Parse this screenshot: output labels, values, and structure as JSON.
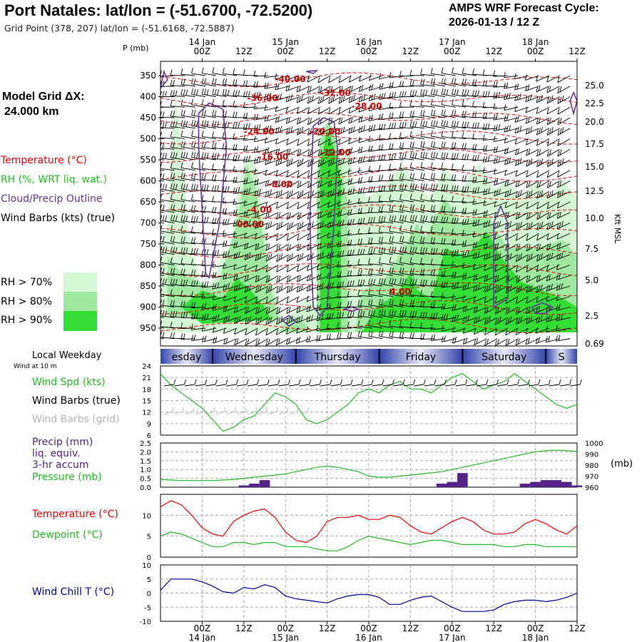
{
  "header": {
    "title": "Port Natales:  lat/lon = (-51.6700, -72.5200)",
    "grid_point": "Grid Point (378, 207) lat/lon = (-51.6168, -72.5887)",
    "forecast_label": "AMPS WRF Forecast Cycle:",
    "forecast_cycle": "2026-01-13 / 12  Z",
    "p_axis_label": "P (mb)",
    "model_grid_label": "Model Grid ΔX:",
    "model_grid_value": "24.000 km",
    "kft_label": "Kft MSL"
  },
  "legend": {
    "temperature": "Temperature (°C)",
    "rh": "RH (%, WRT liq. wat.)",
    "cloud": "Cloud/Precip Outline",
    "wind": "Wind Barbs (kts) (true)",
    "rh70": "RH > 70%",
    "rh80": "RH > 80%",
    "rh90": "RH > 90%"
  },
  "colors": {
    "temperature": "#ee0000",
    "rh": "#22bb22",
    "cloud": "#663399",
    "rh70": "#d2f7d2",
    "rh80": "#9fe89f",
    "rh90": "#33dd33",
    "precip": "#552288",
    "wind_chill": "#000099",
    "weekday_band": "#3344aa"
  },
  "time_axis": {
    "top_dates": [
      "14 Jan",
      "15 Jan",
      "16 Jan",
      "17 Jan",
      "18 Jan"
    ],
    "hour_labels": [
      "00Z",
      "12Z",
      "00Z",
      "12Z",
      "00Z",
      "12Z",
      "00Z",
      "12Z",
      "00Z",
      "12Z"
    ],
    "bottom_dates": [
      "14 Jan",
      "15 Jan",
      "16 Jan",
      "17 Jan",
      "18 Jan"
    ]
  },
  "weekday": {
    "label": "Local Weekday",
    "sublabel": "Wind at 10 m",
    "days": [
      "esday",
      "Wednesday",
      "Thursday",
      "Friday",
      "Saturday",
      "S"
    ]
  },
  "panels": {
    "wind_labels": [
      "Wind Spd (kts)",
      "Wind Barbs (true)",
      "Wind Barbs (grid)"
    ],
    "precip_labels": [
      "Precip (mm)",
      "liq. equiv.",
      "3-hr accum",
      "Pressure (mb)"
    ],
    "pressure_unit": "(mb)",
    "temp_labels": [
      "Temperature (°C)",
      "Dewpoint (°C)"
    ],
    "chill_label": "Wind Chill T (°C)"
  },
  "chart_data": [
    {
      "type": "heatmap",
      "title": "",
      "ylabel": "P (mb)",
      "y2label": "Kft MSL",
      "pressure_ticks": [
        350,
        400,
        450,
        500,
        550,
        600,
        650,
        700,
        750,
        800,
        850,
        900,
        950
      ],
      "height_ticks": [
        "25.0",
        "22.5",
        "20.0",
        "17.5",
        "15.0",
        "12.5",
        "10.0",
        "7.5",
        "5.0",
        "2.5",
        "0.69"
      ],
      "temperature_labels": [
        "-40.00",
        "-36.00",
        "-32.00",
        "-28.00",
        "-24.00",
        "-20.00",
        "-16.00",
        "-12.00",
        "-8.00",
        "-4.00",
        "00.00",
        "4.00"
      ],
      "x_start_hours": -12,
      "x_end_hours": 108
    },
    {
      "type": "line",
      "title": "",
      "series": [
        {
          "name": "Wind Spd (kts)",
          "x": [
            -12,
            -9,
            -6,
            -3,
            0,
            3,
            6,
            9,
            12,
            15,
            18,
            21,
            24,
            27,
            30,
            33,
            36,
            39,
            42,
            45,
            48,
            51,
            54,
            57,
            60,
            63,
            66,
            69,
            72,
            75,
            78,
            81,
            84,
            87,
            90,
            93,
            96,
            99,
            102,
            105,
            108
          ],
          "values": [
            22,
            19,
            17,
            15,
            13,
            10,
            7,
            8,
            10,
            11,
            14,
            17,
            16,
            14,
            10,
            9,
            10,
            12,
            14,
            17,
            18,
            17,
            19,
            20,
            18,
            18,
            17,
            19,
            21,
            22,
            20,
            18,
            19,
            20,
            22,
            20,
            18,
            16,
            14,
            13,
            14
          ]
        }
      ],
      "yticks": [
        6,
        9,
        12,
        15,
        18,
        21,
        24
      ],
      "ylim": [
        6,
        24
      ]
    },
    {
      "type": "bar",
      "title": "",
      "series": [
        {
          "name": "Precip (mm)",
          "x": [
            -12,
            -9,
            -6,
            -3,
            0,
            3,
            6,
            9,
            12,
            15,
            18,
            21,
            24,
            27,
            30,
            33,
            36,
            39,
            42,
            45,
            48,
            51,
            54,
            57,
            60,
            63,
            66,
            69,
            72,
            75,
            78,
            81,
            84,
            87,
            90,
            93,
            96,
            99,
            102,
            105,
            108
          ],
          "values": [
            0,
            0,
            0,
            0,
            0,
            0,
            0,
            0,
            0.1,
            0.2,
            0.4,
            0,
            0,
            0,
            0,
            0,
            0,
            0,
            0,
            0,
            0,
            0,
            0,
            0,
            0,
            0,
            0,
            0.2,
            0.3,
            0.8,
            0,
            0,
            0,
            0,
            0,
            0.2,
            0.3,
            0.4,
            0.4,
            0.3,
            0.1
          ]
        },
        {
          "name": "Pressure (mb)",
          "x": [
            -12,
            -9,
            -6,
            -3,
            0,
            3,
            6,
            9,
            12,
            15,
            18,
            21,
            24,
            27,
            30,
            33,
            36,
            39,
            42,
            45,
            48,
            51,
            54,
            57,
            60,
            63,
            66,
            69,
            72,
            75,
            78,
            81,
            84,
            87,
            90,
            93,
            96,
            99,
            102,
            105,
            108
          ],
          "values": [
            967,
            966.5,
            966,
            966,
            966,
            966,
            966.5,
            967,
            968,
            969,
            970,
            971,
            972,
            974,
            976,
            978,
            979,
            978,
            976,
            974,
            970,
            969,
            969,
            970,
            971,
            972,
            973,
            974,
            976,
            978,
            980,
            982,
            984,
            986,
            988,
            990,
            992,
            993,
            993.5,
            993,
            992.5
          ]
        }
      ],
      "yticks_left": [
        "0.0",
        "0.5",
        "1.0",
        "1.5",
        "2.0",
        "2.5"
      ],
      "yticks_right": [
        960,
        970,
        980,
        990,
        1000
      ],
      "ylim": [
        0,
        2.5
      ],
      "y2lim": [
        960,
        1000
      ]
    },
    {
      "type": "line",
      "title": "",
      "series": [
        {
          "name": "Temperature (°C)",
          "x": [
            -12,
            -9,
            -6,
            -3,
            0,
            3,
            6,
            9,
            12,
            15,
            18,
            21,
            24,
            27,
            30,
            33,
            36,
            39,
            42,
            45,
            48,
            51,
            54,
            57,
            60,
            63,
            66,
            69,
            72,
            75,
            78,
            81,
            84,
            87,
            90,
            93,
            96,
            99,
            102,
            105,
            108
          ],
          "values": [
            12,
            13.5,
            12.5,
            10,
            7,
            5.5,
            5,
            8.5,
            10,
            11,
            11.5,
            9.5,
            6,
            4,
            3.5,
            5,
            8.5,
            9.5,
            9.5,
            10,
            9,
            9,
            10,
            9.5,
            7.5,
            6,
            5.5,
            7,
            8.5,
            9.5,
            8.5,
            6.5,
            5.5,
            5.5,
            6,
            8,
            9,
            8,
            6.5,
            5.5,
            7.5
          ]
        },
        {
          "name": "Dewpoint (°C)",
          "x": [
            -12,
            -9,
            -6,
            -3,
            0,
            3,
            6,
            9,
            12,
            15,
            18,
            21,
            24,
            27,
            30,
            33,
            36,
            39,
            42,
            45,
            48,
            51,
            54,
            57,
            60,
            63,
            66,
            69,
            72,
            75,
            78,
            81,
            84,
            87,
            90,
            93,
            96,
            99,
            102,
            105,
            108
          ],
          "values": [
            5,
            6,
            5.5,
            4.5,
            3.5,
            2.5,
            2.5,
            3.5,
            3.5,
            3,
            3.5,
            3.5,
            2.5,
            2.5,
            2.5,
            2,
            1.5,
            1.5,
            2.5,
            4,
            5,
            4.5,
            4,
            3.5,
            3,
            3.5,
            4,
            4,
            3.5,
            3,
            3,
            3,
            3,
            2.5,
            2.5,
            3,
            3,
            2.5,
            2.5,
            2.5,
            2.5
          ]
        }
      ],
      "yticks": [
        0,
        5,
        10
      ],
      "ylim": [
        0,
        15
      ]
    },
    {
      "type": "line",
      "title": "",
      "series": [
        {
          "name": "Wind Chill T (°C)",
          "x": [
            -12,
            -9,
            -6,
            -3,
            0,
            3,
            6,
            9,
            12,
            15,
            18,
            21,
            24,
            27,
            30,
            33,
            36,
            39,
            42,
            45,
            48,
            51,
            54,
            57,
            60,
            63,
            66,
            69,
            72,
            75,
            78,
            81,
            84,
            87,
            90,
            93,
            96,
            99,
            102,
            105,
            108
          ],
          "values": [
            1,
            5,
            5,
            5,
            4,
            2.5,
            0.5,
            0,
            2,
            1.5,
            3,
            2,
            -1,
            -2,
            -2.5,
            -3,
            -3.5,
            -2,
            -1,
            -0.5,
            -0.5,
            -1.5,
            -4,
            -4,
            -2.5,
            -1.5,
            -1,
            -3,
            -5,
            -6.5,
            -6.5,
            -6.5,
            -6,
            -4,
            -3,
            -2.5,
            -2.5,
            -3,
            -2.5,
            -1.5,
            0
          ]
        }
      ],
      "yticks": [
        -10,
        -5,
        0,
        5,
        10
      ],
      "ylim": [
        -10,
        10
      ]
    }
  ]
}
